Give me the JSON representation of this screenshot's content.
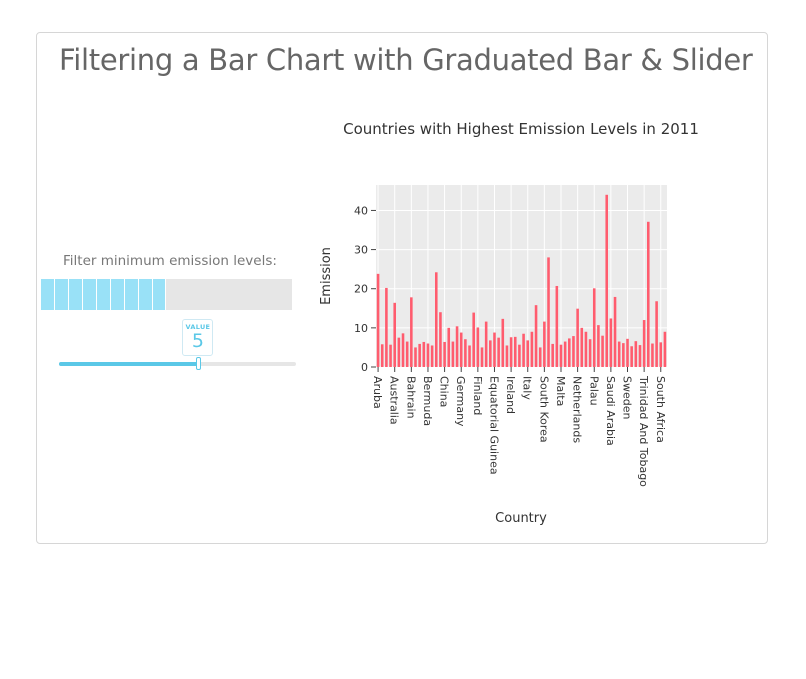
{
  "page": {
    "title": "Filtering a Bar Chart with Graduated Bar & Slider"
  },
  "filter": {
    "label": "Filter minimum emission levels:",
    "value_label": "VALUE",
    "value": 5,
    "slider_min": 0,
    "slider_max": 8.5,
    "graduated_segments_filled": 9,
    "graduated_segments_total": 18,
    "fill_color": "#99e1f7",
    "accent_color": "#5bc8e7"
  },
  "chart_data": {
    "type": "bar",
    "title": "Countries with Highest Emission Levels in 2011",
    "xlabel": "Country",
    "ylabel": "Emission",
    "ylim": [
      0,
      46.5
    ],
    "yticks": [
      0,
      10,
      20,
      30,
      40
    ],
    "bar_color": "#ff5c6e",
    "background": "#ebebeb",
    "grid": true,
    "values": [
      23.8,
      5.8,
      20.2,
      5.7,
      16.4,
      7.5,
      8.6,
      6.5,
      17.8,
      5.0,
      5.9,
      6.4,
      6.0,
      5.5,
      24.2,
      14.0,
      6.4,
      10.0,
      6.5,
      10.4,
      8.8,
      7.1,
      5.5,
      13.9,
      10.1,
      5.0,
      11.6,
      6.8,
      8.8,
      7.5,
      12.3,
      5.5,
      7.6,
      7.7,
      5.7,
      8.5,
      6.8,
      9.0,
      15.8,
      5.0,
      11.6,
      28.0,
      5.9,
      20.7,
      5.7,
      6.5,
      7.3,
      7.9,
      14.9,
      10.0,
      9.0,
      7.1,
      20.1,
      10.7,
      8.0,
      44.0,
      12.4,
      17.9,
      6.5,
      6.1,
      7.2,
      5.3,
      6.6,
      5.6,
      12.0,
      37.1,
      6.0,
      16.8,
      6.3,
      9.0
    ],
    "x_labeled_ticks": [
      {
        "index": 0,
        "label": "Aruba"
      },
      {
        "index": 4,
        "label": "Australia"
      },
      {
        "index": 8,
        "label": "Bahrain"
      },
      {
        "index": 12,
        "label": "Bermuda"
      },
      {
        "index": 16,
        "label": "China"
      },
      {
        "index": 20,
        "label": "Germany"
      },
      {
        "index": 24,
        "label": "Finland"
      },
      {
        "index": 28,
        "label": "Equatorial Guinea"
      },
      {
        "index": 32,
        "label": "Ireland"
      },
      {
        "index": 36,
        "label": "Italy"
      },
      {
        "index": 40,
        "label": "South Korea"
      },
      {
        "index": 44,
        "label": "Malta"
      },
      {
        "index": 48,
        "label": "Netherlands"
      },
      {
        "index": 52,
        "label": "Palau"
      },
      {
        "index": 56,
        "label": "Saudi Arabia"
      },
      {
        "index": 60,
        "label": "Sweden"
      },
      {
        "index": 64,
        "label": "Trinidad And Tobago"
      },
      {
        "index": 68,
        "label": "South Africa"
      }
    ]
  }
}
